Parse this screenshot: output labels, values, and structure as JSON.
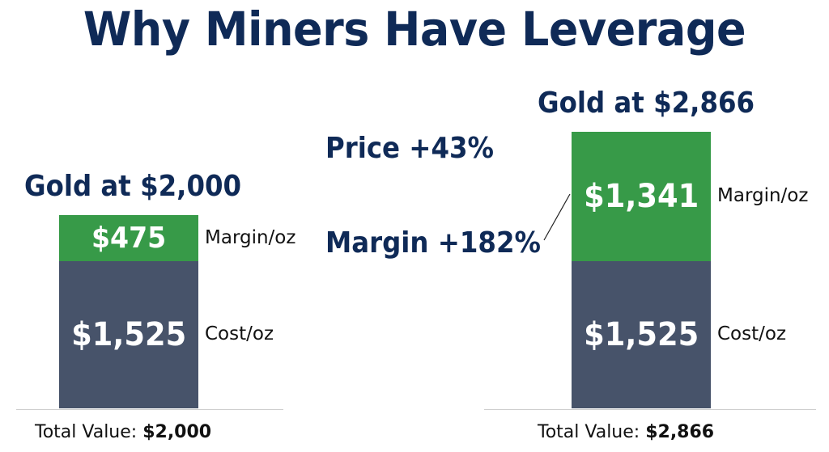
{
  "title": "Why Miners Have Leverage",
  "chart_data": [
    {
      "type": "bar",
      "stacked": true,
      "title": "Gold at $2,000",
      "segments": [
        {
          "name": "Cost/oz",
          "value": 1525,
          "label": "$1,525",
          "color": "#47536a"
        },
        {
          "name": "Margin/oz",
          "value": 475,
          "label": "$475",
          "color": "#379a48"
        }
      ],
      "total_prefix": "Total Value:",
      "total_value": "$2,000"
    },
    {
      "type": "bar",
      "stacked": true,
      "title": "Gold at $2,866",
      "segments": [
        {
          "name": "Cost/oz",
          "value": 1525,
          "label": "$1,525",
          "color": "#47536a"
        },
        {
          "name": "Margin/oz",
          "value": 1341,
          "label": "$1,341",
          "color": "#379a48"
        }
      ],
      "total_prefix": "Total Value:",
      "total_value": "$2,866"
    }
  ],
  "annotations": {
    "price_change": "Price +43%",
    "margin_change": "Margin +182%"
  }
}
